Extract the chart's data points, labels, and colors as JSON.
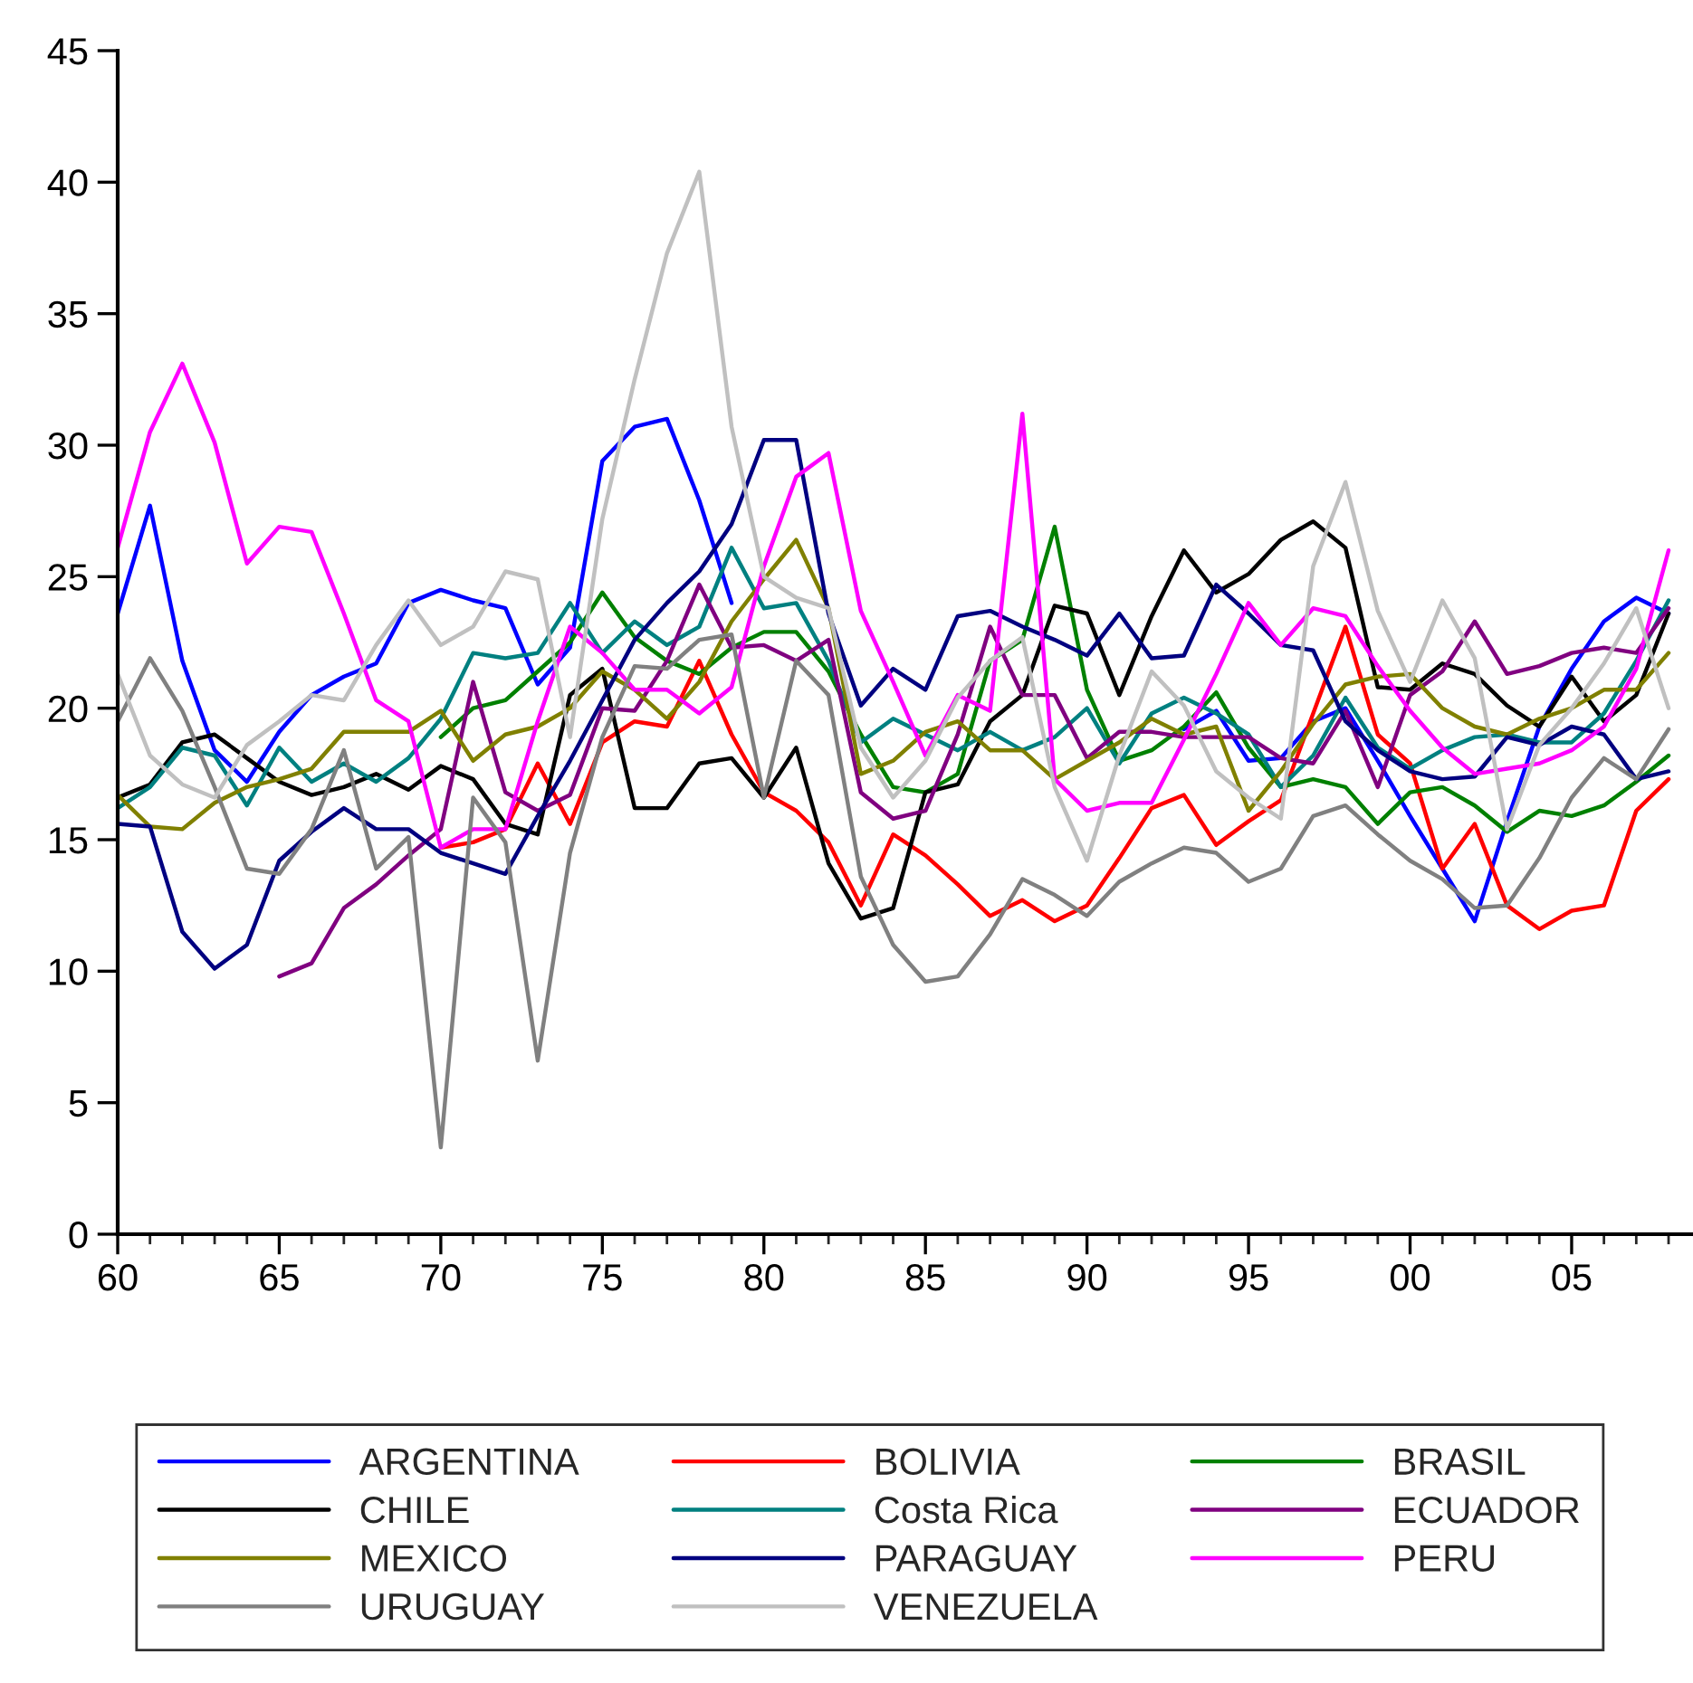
{
  "chart_data": {
    "type": "line",
    "x": [
      1960,
      1961,
      1962,
      1963,
      1964,
      1965,
      1966,
      1967,
      1968,
      1969,
      1970,
      1971,
      1972,
      1973,
      1974,
      1975,
      1976,
      1977,
      1978,
      1979,
      1980,
      1981,
      1982,
      1983,
      1984,
      1985,
      1986,
      1987,
      1988,
      1989,
      1990,
      1991,
      1992,
      1993,
      1994,
      1995,
      1996,
      1997,
      1998,
      1999,
      2000,
      2001,
      2002,
      2003,
      2004,
      2005,
      2006,
      2007,
      2008
    ],
    "xlim": [
      1960,
      2008.7
    ],
    "xticks": [
      {
        "value": 1960,
        "label": "60"
      },
      {
        "value": 1961,
        "label": null
      },
      {
        "value": 1962,
        "label": null
      },
      {
        "value": 1963,
        "label": null
      },
      {
        "value": 1964,
        "label": null
      },
      {
        "value": 1965,
        "label": "65"
      },
      {
        "value": 1966,
        "label": null
      },
      {
        "value": 1967,
        "label": null
      },
      {
        "value": 1968,
        "label": null
      },
      {
        "value": 1969,
        "label": null
      },
      {
        "value": 1970,
        "label": "70"
      },
      {
        "value": 1971,
        "label": null
      },
      {
        "value": 1972,
        "label": null
      },
      {
        "value": 1973,
        "label": null
      },
      {
        "value": 1974,
        "label": null
      },
      {
        "value": 1975,
        "label": "75"
      },
      {
        "value": 1976,
        "label": null
      },
      {
        "value": 1977,
        "label": null
      },
      {
        "value": 1978,
        "label": null
      },
      {
        "value": 1979,
        "label": null
      },
      {
        "value": 1980,
        "label": "80"
      },
      {
        "value": 1981,
        "label": null
      },
      {
        "value": 1982,
        "label": null
      },
      {
        "value": 1983,
        "label": null
      },
      {
        "value": 1984,
        "label": null
      },
      {
        "value": 1985,
        "label": "85"
      },
      {
        "value": 1986,
        "label": null
      },
      {
        "value": 1987,
        "label": null
      },
      {
        "value": 1988,
        "label": null
      },
      {
        "value": 1989,
        "label": null
      },
      {
        "value": 1990,
        "label": "90"
      },
      {
        "value": 1991,
        "label": null
      },
      {
        "value": 1992,
        "label": null
      },
      {
        "value": 1993,
        "label": null
      },
      {
        "value": 1994,
        "label": null
      },
      {
        "value": 1995,
        "label": "95"
      },
      {
        "value": 1996,
        "label": null
      },
      {
        "value": 1997,
        "label": null
      },
      {
        "value": 1998,
        "label": null
      },
      {
        "value": 1999,
        "label": null
      },
      {
        "value": 2000,
        "label": "00"
      },
      {
        "value": 2001,
        "label": null
      },
      {
        "value": 2002,
        "label": null
      },
      {
        "value": 2003,
        "label": null
      },
      {
        "value": 2004,
        "label": null
      },
      {
        "value": 2005,
        "label": "05"
      },
      {
        "value": 2006,
        "label": null
      },
      {
        "value": 2007,
        "label": null
      },
      {
        "value": 2008,
        "label": null
      }
    ],
    "ylim": [
      0,
      45
    ],
    "yticks": [
      0,
      5,
      10,
      15,
      20,
      25,
      30,
      35,
      40,
      45
    ],
    "grid": false,
    "legend": "bottom",
    "line_style": "solid",
    "series": [
      {
        "name": "ARGENTINA",
        "color": "#0000ff",
        "values": [
          23.6,
          27.7,
          21.8,
          18.4,
          17.2,
          19.1,
          20.5,
          21.2,
          21.7,
          24.0,
          24.5,
          24.1,
          23.8,
          20.9,
          22.3,
          29.4,
          30.7,
          31.0,
          27.9,
          24.0,
          null,
          null,
          null,
          null,
          null,
          null,
          null,
          null,
          null,
          null,
          null,
          null,
          null,
          19.2,
          19.9,
          18.0,
          18.1,
          19.5,
          20.0,
          18.0,
          15.9,
          13.9,
          11.9,
          15.7,
          19.3,
          21.5,
          23.3,
          24.2,
          23.6
        ]
      },
      {
        "name": "BOLIVIA",
        "color": "#ff0000",
        "values": [
          null,
          null,
          null,
          null,
          null,
          null,
          null,
          null,
          null,
          null,
          14.7,
          14.9,
          15.4,
          17.9,
          15.6,
          18.7,
          19.5,
          19.3,
          21.8,
          19.0,
          16.8,
          16.1,
          14.9,
          12.5,
          15.2,
          14.4,
          13.3,
          12.1,
          12.7,
          11.9,
          12.5,
          14.3,
          16.2,
          16.7,
          14.8,
          15.7,
          16.5,
          19.8,
          23.1,
          19.0,
          17.9,
          13.9,
          15.6,
          12.5,
          11.6,
          12.3,
          12.5,
          16.1,
          17.3
        ]
      },
      {
        "name": "BRASIL",
        "color": "#008000",
        "values": [
          null,
          null,
          null,
          null,
          null,
          null,
          null,
          null,
          null,
          null,
          18.9,
          20.0,
          20.3,
          21.4,
          22.5,
          24.4,
          22.7,
          21.8,
          21.3,
          22.3,
          22.9,
          22.9,
          21.4,
          19.0,
          17.0,
          16.8,
          17.5,
          21.8,
          22.6,
          26.9,
          20.7,
          18.0,
          18.4,
          19.3,
          20.6,
          18.5,
          17.0,
          17.3,
          17.0,
          15.6,
          16.8,
          17.0,
          16.3,
          15.3,
          16.1,
          15.9,
          16.3,
          17.2,
          18.2
        ]
      },
      {
        "name": "CHILE",
        "color": "#000000",
        "values": [
          16.6,
          17.1,
          18.7,
          19.0,
          18.1,
          17.2,
          16.7,
          17.0,
          17.5,
          16.9,
          17.8,
          17.3,
          15.6,
          15.2,
          20.5,
          21.5,
          16.2,
          16.2,
          17.9,
          18.1,
          16.6,
          18.5,
          14.1,
          12.0,
          12.4,
          16.8,
          17.1,
          19.5,
          20.5,
          23.9,
          23.6,
          20.5,
          23.5,
          26.0,
          24.4,
          25.1,
          26.4,
          27.1,
          26.1,
          20.8,
          20.7,
          21.7,
          21.3,
          20.1,
          19.3,
          21.2,
          19.5,
          20.5,
          23.6
        ]
      },
      {
        "name": "Costa Rica",
        "color": "#008080",
        "values": [
          16.2,
          17.0,
          18.5,
          18.2,
          16.3,
          18.5,
          17.2,
          17.9,
          17.2,
          18.1,
          19.6,
          22.1,
          21.9,
          22.1,
          24.0,
          22.1,
          23.3,
          22.4,
          23.1,
          26.1,
          23.8,
          24.0,
          21.8,
          18.7,
          19.6,
          19.0,
          18.4,
          19.1,
          18.4,
          18.9,
          20.0,
          17.9,
          19.8,
          20.4,
          19.8,
          19.0,
          17.0,
          18.2,
          20.4,
          18.5,
          17.7,
          18.4,
          18.9,
          19.0,
          18.7,
          18.7,
          19.8,
          21.8,
          24.1
        ]
      },
      {
        "name": "ECUADOR",
        "color": "#800080",
        "values": [
          null,
          null,
          null,
          null,
          null,
          9.8,
          10.3,
          12.4,
          13.3,
          14.4,
          15.4,
          21.0,
          16.8,
          16.1,
          16.7,
          20.0,
          19.9,
          21.8,
          24.7,
          22.3,
          22.4,
          21.8,
          22.6,
          16.8,
          15.8,
          16.1,
          19.0,
          23.1,
          20.5,
          20.5,
          18.1,
          19.1,
          19.1,
          18.9,
          18.9,
          18.9,
          18.1,
          17.9,
          19.9,
          17.0,
          20.5,
          21.4,
          23.3,
          21.3,
          21.6,
          22.1,
          22.3,
          22.1,
          23.8
        ]
      },
      {
        "name": "MEXICO",
        "color": "#808000",
        "values": [
          16.7,
          15.5,
          15.4,
          16.4,
          17.0,
          17.3,
          17.7,
          19.1,
          19.1,
          19.1,
          19.9,
          18.0,
          19.0,
          19.3,
          20.0,
          21.4,
          20.7,
          19.6,
          21.0,
          23.3,
          24.9,
          26.4,
          23.8,
          17.5,
          18.0,
          19.1,
          19.5,
          18.4,
          18.4,
          17.3,
          18.0,
          18.7,
          19.6,
          19.0,
          19.3,
          16.1,
          17.6,
          19.4,
          20.9,
          21.2,
          21.3,
          20.0,
          19.3,
          19.0,
          19.6,
          20.0,
          20.7,
          20.7,
          22.1
        ]
      },
      {
        "name": "PARAGUAY",
        "color": "#000080",
        "values": [
          15.6,
          15.5,
          11.5,
          10.1,
          11.0,
          14.2,
          15.3,
          16.2,
          15.4,
          15.4,
          14.5,
          14.1,
          13.7,
          15.9,
          18.0,
          20.3,
          22.6,
          24.0,
          25.2,
          27.0,
          30.2,
          30.2,
          23.6,
          20.1,
          21.5,
          20.7,
          23.5,
          23.7,
          23.1,
          22.6,
          22.0,
          23.6,
          21.9,
          22.0,
          24.7,
          23.6,
          22.4,
          22.2,
          19.5,
          18.4,
          17.6,
          17.3,
          17.4,
          18.9,
          18.6,
          19.3,
          19.0,
          17.3,
          17.6
        ]
      },
      {
        "name": "PERU",
        "color": "#ff00ff",
        "values": [
          26.1,
          30.5,
          33.1,
          30.1,
          25.5,
          26.9,
          26.7,
          23.6,
          20.3,
          19.5,
          14.7,
          15.4,
          15.4,
          19.5,
          23.1,
          22.1,
          20.7,
          20.7,
          19.8,
          20.8,
          25.4,
          28.8,
          29.7,
          23.7,
          21.0,
          18.2,
          20.5,
          19.9,
          31.2,
          17.3,
          16.1,
          16.4,
          16.4,
          18.8,
          21.3,
          24.0,
          22.4,
          23.8,
          23.5,
          21.6,
          19.9,
          18.5,
          17.5,
          17.7,
          17.9,
          18.4,
          19.3,
          21.5,
          26.0
        ]
      },
      {
        "name": "URUGUAY",
        "color": "#808080",
        "values": [
          19.5,
          21.9,
          19.9,
          17.0,
          13.9,
          13.7,
          15.4,
          18.4,
          13.9,
          15.1,
          3.3,
          16.6,
          14.9,
          6.6,
          14.5,
          18.9,
          21.6,
          21.5,
          22.6,
          22.8,
          16.6,
          21.8,
          20.5,
          13.6,
          11.0,
          9.6,
          9.8,
          11.4,
          13.5,
          12.9,
          12.1,
          13.4,
          14.1,
          14.7,
          14.5,
          13.4,
          13.9,
          15.9,
          16.3,
          15.2,
          14.2,
          13.5,
          12.4,
          12.5,
          14.3,
          16.6,
          18.1,
          17.3,
          19.2
        ]
      },
      {
        "name": "VENEZUELA",
        "color": "#c0c0c0",
        "values": [
          21.3,
          18.2,
          17.1,
          16.6,
          18.6,
          19.5,
          20.5,
          20.3,
          22.4,
          24.1,
          22.4,
          23.1,
          25.2,
          24.9,
          18.9,
          27.2,
          32.5,
          37.3,
          40.4,
          30.7,
          25.0,
          24.2,
          23.8,
          18.5,
          16.6,
          18.0,
          20.4,
          21.8,
          22.7,
          17.0,
          14.2,
          18.2,
          21.4,
          20.1,
          17.6,
          16.6,
          15.8,
          25.4,
          28.6,
          23.7,
          21.0,
          24.1,
          21.9,
          15.4,
          18.6,
          20.0,
          21.7,
          23.8,
          20.0
        ]
      }
    ]
  }
}
